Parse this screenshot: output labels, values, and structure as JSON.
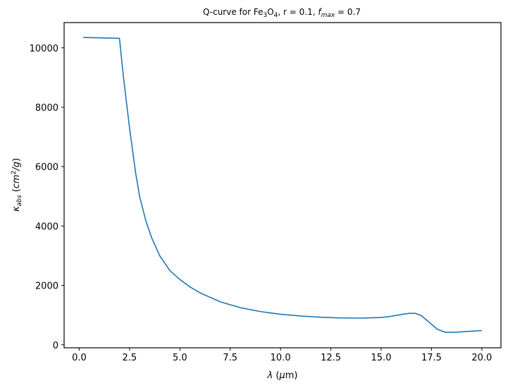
{
  "chart_data": {
    "type": "line",
    "title": {
      "prefix": "Q-curve for Fe",
      "sub1": "3",
      "mid": "O",
      "sub2": "4",
      "after": ", r = 0.1, ",
      "f_sym": "f",
      "f_sub": "max",
      "f_val": " = 0.7"
    },
    "xlabel": {
      "sym": "λ",
      "rest1": " (",
      "mu": "μ",
      "rest2": "m)"
    },
    "ylabel": {
      "sym": "κ",
      "sub": "abs",
      "open": " (",
      "cm": "cm",
      "sup": "2",
      "slash": "/g",
      "close": ")"
    },
    "xlim": [
      -0.75,
      0.95
    ],
    "ylim": [
      -100,
      10850
    ],
    "xlim_full": [
      -0.75,
      20.95
    ],
    "xticks": [
      0.0,
      2.5,
      5.0,
      7.5,
      10.0,
      12.5,
      15.0,
      17.5,
      20.0
    ],
    "xtick_labels": [
      "0.0",
      "2.5",
      "5.0",
      "7.5",
      "10.0",
      "12.5",
      "15.0",
      "17.5",
      "20.0"
    ],
    "yticks": [
      0,
      2000,
      4000,
      6000,
      8000,
      10000
    ],
    "ytick_labels": [
      "0",
      "2000",
      "4000",
      "6000",
      "8000",
      "10000"
    ],
    "series": [
      {
        "color": "#1f77b4",
        "x": [
          0.2,
          2.0,
          2.2,
          2.5,
          2.8,
          3.0,
          3.3,
          3.6,
          4.0,
          4.5,
          5.0,
          5.5,
          6.0,
          7.0,
          8.0,
          9.0,
          10.0,
          11.0,
          12.0,
          13.0,
          14.0,
          15.0,
          15.5,
          16.0,
          16.4,
          16.7,
          17.0,
          17.4,
          17.8,
          18.2,
          18.6,
          19.0,
          19.5,
          20.0
        ],
        "y": [
          10350,
          10320,
          9000,
          7300,
          5800,
          5000,
          4200,
          3600,
          3000,
          2500,
          2200,
          1950,
          1750,
          1450,
          1250,
          1120,
          1030,
          970,
          930,
          905,
          900,
          920,
          960,
          1020,
          1060,
          1060,
          980,
          750,
          520,
          420,
          420,
          440,
          460,
          480
        ]
      }
    ]
  }
}
